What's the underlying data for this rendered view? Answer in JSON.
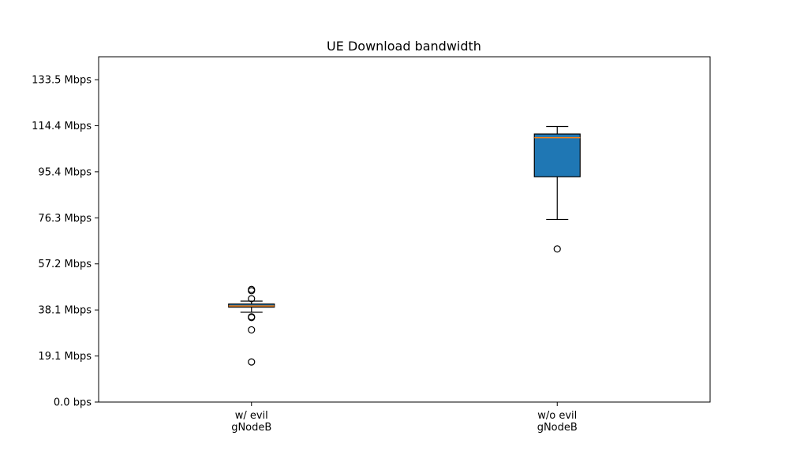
{
  "chart_data": {
    "type": "box",
    "title": "UE Download bandwidth",
    "xlabel": "",
    "ylabel": "",
    "y_unit": "Mbps",
    "ylim": [
      0,
      143
    ],
    "grid": false,
    "yticks": [
      {
        "value": 0,
        "label": "0.0 bps"
      },
      {
        "value": 19.07,
        "label": "19.1 Mbps"
      },
      {
        "value": 38.15,
        "label": "38.1 Mbps"
      },
      {
        "value": 57.22,
        "label": "57.2 Mbps"
      },
      {
        "value": 76.29,
        "label": "76.3 Mbps"
      },
      {
        "value": 95.37,
        "label": "95.4 Mbps"
      },
      {
        "value": 114.44,
        "label": "114.4 Mbps"
      },
      {
        "value": 133.51,
        "label": "133.5 Mbps"
      }
    ],
    "categories": [
      {
        "label_lines": [
          "w/ evil",
          "gNodeB"
        ]
      },
      {
        "label_lines": [
          "w/o evil",
          "gNodeB"
        ]
      }
    ],
    "boxes": [
      {
        "whisker_low": 37.2,
        "q1": 39.3,
        "median": 39.8,
        "q3": 40.6,
        "whisker_high": 41.8,
        "outliers": [
          46.6,
          46.1,
          42.8,
          35.3,
          35.0,
          29.9,
          16.6
        ],
        "fill": "#1f77b4"
      },
      {
        "whisker_low": 75.6,
        "q1": 93.3,
        "median": 109.5,
        "q3": 111.0,
        "whisker_high": 114.1,
        "outliers": [
          63.4
        ],
        "fill": "#1f77b4"
      }
    ],
    "median_color": "#ff7f0e"
  }
}
